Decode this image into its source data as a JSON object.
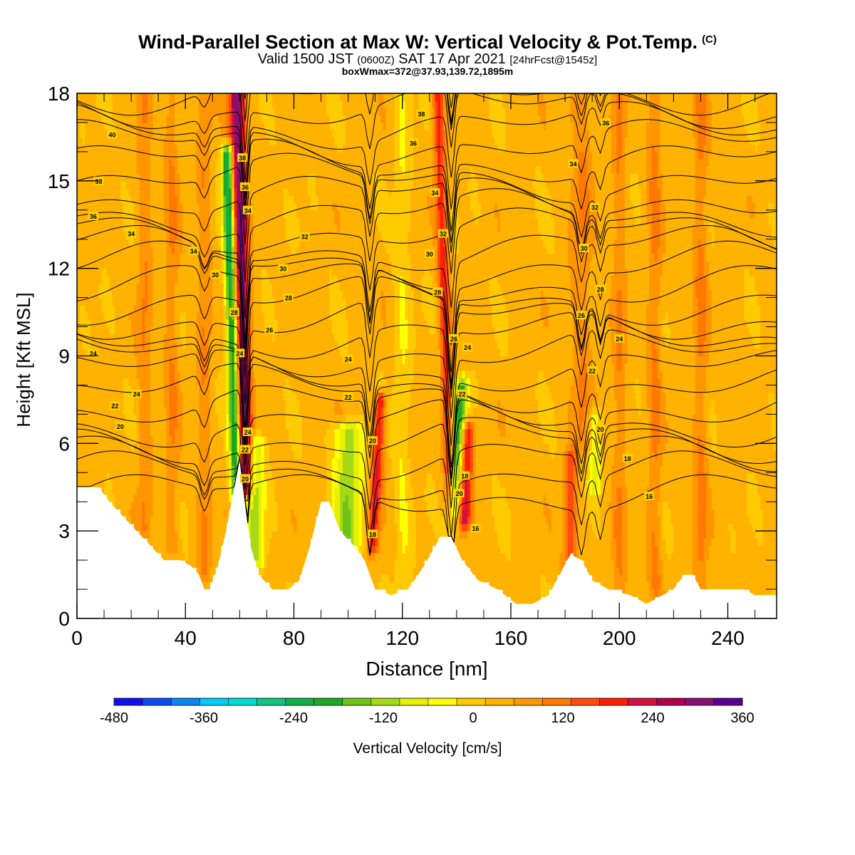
{
  "chart_data": {
    "type": "heatmap",
    "title": "Wind-Parallel Section at Max W: Vertical Velocity & Pot.Temp.",
    "title_mark": "(C)",
    "subtitle_main": "Valid 1500 JST",
    "subtitle_utc": "(0600Z)",
    "subtitle_date": "SAT 17 Apr 2021",
    "subtitle_fcst": "[24hrFcst@1545z]",
    "subtitle2": "boxWmax=372@37.93,139.72,1895m",
    "xlabel": "Distance [nm]",
    "ylabel": "Height [Kft MSL]",
    "xlim": [
      0,
      258
    ],
    "ylim": [
      0,
      18
    ],
    "x_ticks": [
      "0",
      "40",
      "80",
      "120",
      "160",
      "200",
      "240"
    ],
    "y_ticks": [
      "0",
      "3",
      "6",
      "9",
      "12",
      "15",
      "18"
    ],
    "colorbar": {
      "label": "Vertical Velocity [cm/s]",
      "tick_labels": [
        "-480",
        "-360",
        "-240",
        "-120",
        "0",
        "120",
        "240",
        "360"
      ],
      "range": [
        -480,
        360
      ],
      "colors": [
        "#1010ee",
        "#0b4cf5",
        "#0a86f0",
        "#00ccf8",
        "#00dcd2",
        "#10c47e",
        "#10ae48",
        "#1ea820",
        "#6ec318",
        "#a6d818",
        "#e6f000",
        "#ffff00",
        "#ffca00",
        "#ffb200",
        "#ff9600",
        "#ff7800",
        "#ff4a10",
        "#fb1e00",
        "#d61040",
        "#b00050",
        "#881070",
        "#5a0090"
      ]
    },
    "terrain_kft": [
      [
        0,
        4.5
      ],
      [
        8,
        4.5
      ],
      [
        12,
        4.0
      ],
      [
        17,
        3.5
      ],
      [
        22,
        3.0
      ],
      [
        27,
        2.5
      ],
      [
        32,
        2.0
      ],
      [
        38,
        2.0
      ],
      [
        42,
        1.8
      ],
      [
        45,
        1.5
      ],
      [
        47,
        1.0
      ],
      [
        49,
        1.0
      ],
      [
        52,
        1.8
      ],
      [
        55,
        3.0
      ],
      [
        58,
        4.5
      ],
      [
        60,
        5.5
      ],
      [
        62,
        4.0
      ],
      [
        64,
        2.5
      ],
      [
        67,
        1.5
      ],
      [
        72,
        1.0
      ],
      [
        78,
        1.0
      ],
      [
        82,
        1.3
      ],
      [
        86,
        2.5
      ],
      [
        90,
        4.0
      ],
      [
        93,
        4.0
      ],
      [
        97,
        3.0
      ],
      [
        102,
        2.5
      ],
      [
        106,
        2.0
      ],
      [
        110,
        1.0
      ],
      [
        116,
        0.8
      ],
      [
        122,
        1.0
      ],
      [
        128,
        1.8
      ],
      [
        134,
        2.8
      ],
      [
        138,
        2.8
      ],
      [
        142,
        2.0
      ],
      [
        148,
        1.3
      ],
      [
        155,
        1.0
      ],
      [
        162,
        0.5
      ],
      [
        168,
        0.5
      ],
      [
        174,
        0.8
      ],
      [
        178,
        1.5
      ],
      [
        182,
        2.2
      ],
      [
        186,
        2.0
      ],
      [
        190,
        1.3
      ],
      [
        196,
        1.0
      ],
      [
        204,
        0.8
      ],
      [
        210,
        0.5
      ],
      [
        216,
        0.8
      ],
      [
        220,
        1.0
      ],
      [
        224,
        1.5
      ],
      [
        227,
        1.5
      ],
      [
        230,
        1.0
      ],
      [
        238,
        1.0
      ],
      [
        246,
        1.0
      ],
      [
        250,
        0.8
      ],
      [
        258,
        0.8
      ]
    ],
    "w_cells": [
      {
        "x": 62,
        "y_bottom": 4.5,
        "y_top": 18,
        "tilt": -3.0,
        "w": 300,
        "width": 2.8
      },
      {
        "x": 59,
        "y_bottom": 4.2,
        "y_top": 16,
        "tilt": -3.5,
        "w": -300,
        "width": 2.2
      },
      {
        "x": 66,
        "y_bottom": 2.0,
        "y_top": 6,
        "tilt": 0,
        "w": -150,
        "width": 3
      },
      {
        "x": 100,
        "y_bottom": 2.5,
        "y_top": 6.5,
        "tilt": 0,
        "w": -160,
        "width": 5
      },
      {
        "x": 109,
        "y_bottom": 2.5,
        "y_top": 7.5,
        "tilt": 3,
        "w": 180,
        "width": 2
      },
      {
        "x": 138,
        "y_bottom": 3.0,
        "y_top": 18,
        "tilt": -5,
        "w": 160,
        "width": 2
      },
      {
        "x": 138,
        "y_bottom": 3.0,
        "y_top": 8,
        "tilt": 4,
        "w": -220,
        "width": 2.5
      },
      {
        "x": 143,
        "y_bottom": 3.3,
        "y_top": 6.5,
        "tilt": 1,
        "w": 200,
        "width": 2.3
      },
      {
        "x": 182,
        "y_bottom": 1.5,
        "y_top": 5.5,
        "tilt": 0,
        "w": 130,
        "width": 2.5
      },
      {
        "x": 191,
        "y_bottom": 4.5,
        "y_top": 7.0,
        "tilt": 0,
        "w": -100,
        "width": 2.5
      },
      {
        "x": 186,
        "y_bottom": 6.0,
        "y_top": 18,
        "tilt": 0,
        "w": 60,
        "width": 4
      },
      {
        "x": 47,
        "y_bottom": 1.5,
        "y_top": 18,
        "tilt": 0,
        "w": 60,
        "width": 2.5
      },
      {
        "x": 35,
        "y_bottom": 2.5,
        "y_top": 18,
        "tilt": 0,
        "w": 60,
        "width": 2.5
      },
      {
        "x": 25,
        "y_bottom": 3.0,
        "y_top": 18,
        "tilt": 0,
        "w": 60,
        "width": 2.5
      },
      {
        "x": 200,
        "y_bottom": 1.0,
        "y_top": 18,
        "tilt": 0,
        "w": 60,
        "width": 2.5
      },
      {
        "x": 213,
        "y_bottom": 1.0,
        "y_top": 18,
        "tilt": 0,
        "w": 70,
        "width": 2.5
      },
      {
        "x": 230,
        "y_bottom": 1.0,
        "y_top": 18,
        "tilt": 0,
        "w": 70,
        "width": 2.5
      },
      {
        "x": 120,
        "y_bottom": 1.0,
        "y_top": 18,
        "tilt": 0,
        "w": -50,
        "width": 3
      }
    ],
    "isentropes": [
      16,
      18,
      20,
      22,
      24,
      26,
      28,
      30,
      32,
      34,
      36,
      38,
      40
    ],
    "contour_labels": [
      {
        "text": "40",
        "x": 13,
        "y": 16.6
      },
      {
        "text": "38",
        "x": 127,
        "y": 17.3
      },
      {
        "text": "38",
        "x": 61,
        "y": 15.8
      },
      {
        "text": "38",
        "x": 8,
        "y": 15.0
      },
      {
        "text": "36",
        "x": 124,
        "y": 16.3
      },
      {
        "text": "36",
        "x": 62,
        "y": 14.8
      },
      {
        "text": "36",
        "x": 6,
        "y": 13.8
      },
      {
        "text": "34",
        "x": 20,
        "y": 13.2
      },
      {
        "text": "34",
        "x": 43,
        "y": 12.6
      },
      {
        "text": "34",
        "x": 63,
        "y": 14.0
      },
      {
        "text": "34",
        "x": 132,
        "y": 14.6
      },
      {
        "text": "34",
        "x": 183,
        "y": 15.6
      },
      {
        "text": "36",
        "x": 195,
        "y": 17.0
      },
      {
        "text": "32",
        "x": 84,
        "y": 13.1
      },
      {
        "text": "32",
        "x": 135,
        "y": 13.2
      },
      {
        "text": "32",
        "x": 191,
        "y": 14.1
      },
      {
        "text": "30",
        "x": 51,
        "y": 11.8
      },
      {
        "text": "30",
        "x": 76,
        "y": 12.0
      },
      {
        "text": "30",
        "x": 130,
        "y": 12.5
      },
      {
        "text": "30",
        "x": 187,
        "y": 12.7
      },
      {
        "text": "28",
        "x": 58,
        "y": 10.5
      },
      {
        "text": "28",
        "x": 78,
        "y": 11.0
      },
      {
        "text": "28",
        "x": 133,
        "y": 11.2
      },
      {
        "text": "28",
        "x": 193,
        "y": 11.3
      },
      {
        "text": "26",
        "x": 71,
        "y": 9.9
      },
      {
        "text": "26",
        "x": 186,
        "y": 10.4
      },
      {
        "text": "26",
        "x": 139,
        "y": 9.6
      },
      {
        "text": "24",
        "x": 6,
        "y": 9.1
      },
      {
        "text": "24",
        "x": 60,
        "y": 9.1
      },
      {
        "text": "24",
        "x": 22,
        "y": 7.7
      },
      {
        "text": "24",
        "x": 100,
        "y": 8.9
      },
      {
        "text": "24",
        "x": 144,
        "y": 9.3
      },
      {
        "text": "24",
        "x": 200,
        "y": 9.6
      },
      {
        "text": "22",
        "x": 14,
        "y": 7.3
      },
      {
        "text": "22",
        "x": 100,
        "y": 7.6
      },
      {
        "text": "22",
        "x": 142,
        "y": 7.7
      },
      {
        "text": "22",
        "x": 190,
        "y": 8.5
      },
      {
        "text": "22",
        "x": 62,
        "y": 5.8
      },
      {
        "text": "20",
        "x": 16,
        "y": 6.6
      },
      {
        "text": "20",
        "x": 109,
        "y": 6.1
      },
      {
        "text": "20",
        "x": 62,
        "y": 4.8
      },
      {
        "text": "20",
        "x": 141,
        "y": 4.3
      },
      {
        "text": "20",
        "x": 193,
        "y": 6.5
      },
      {
        "text": "24",
        "x": 63,
        "y": 6.4
      },
      {
        "text": "18",
        "x": 143,
        "y": 4.9
      },
      {
        "text": "18",
        "x": 109,
        "y": 2.9
      },
      {
        "text": "18",
        "x": 203,
        "y": 5.5
      },
      {
        "text": "16",
        "x": 147,
        "y": 3.1
      },
      {
        "text": "16",
        "x": 211,
        "y": 4.2
      }
    ]
  }
}
